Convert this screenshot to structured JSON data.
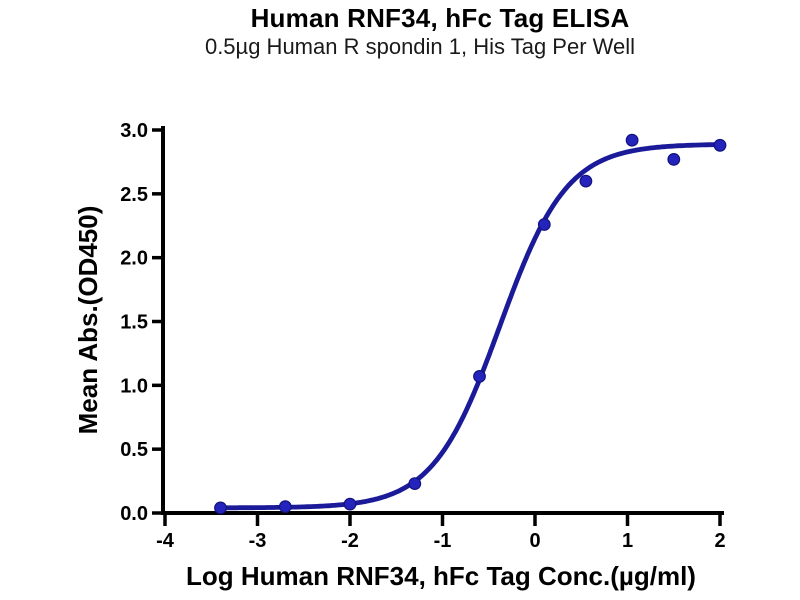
{
  "chart_data": {
    "type": "scatter",
    "title": "Human RNF34, hFc Tag ELISA",
    "subtitle": "0.5µg Human R spondin 1, His Tag Per Well",
    "xlabel": "Log Human RNF34, hFc Tag Conc.(µg/ml)",
    "ylabel": "Mean Abs.(OD450)",
    "xlim": [
      -4,
      2
    ],
    "ylim": [
      0,
      3
    ],
    "grid": false,
    "legend": "none",
    "x_ticks": [
      {
        "v": -4,
        "label": "-4"
      },
      {
        "v": -3,
        "label": "-3"
      },
      {
        "v": -2,
        "label": "-2"
      },
      {
        "v": -1,
        "label": "-1"
      },
      {
        "v": 0,
        "label": "0"
      },
      {
        "v": 1,
        "label": "1"
      },
      {
        "v": 2,
        "label": "2"
      }
    ],
    "y_ticks": [
      {
        "v": 0.0,
        "label": "0.0"
      },
      {
        "v": 0.5,
        "label": "0.5"
      },
      {
        "v": 1.0,
        "label": "1.0"
      },
      {
        "v": 1.5,
        "label": "1.5"
      },
      {
        "v": 2.0,
        "label": "2.0"
      },
      {
        "v": 2.5,
        "label": "2.5"
      },
      {
        "v": 3.0,
        "label": "3.0"
      }
    ],
    "points": [
      {
        "x": -3.4,
        "y": 0.04
      },
      {
        "x": -2.7,
        "y": 0.05
      },
      {
        "x": -2.0,
        "y": 0.07
      },
      {
        "x": -1.3,
        "y": 0.23
      },
      {
        "x": -0.6,
        "y": 1.07
      },
      {
        "x": 0.1,
        "y": 2.26
      },
      {
        "x": 0.55,
        "y": 2.6
      },
      {
        "x": 1.05,
        "y": 2.92
      },
      {
        "x": 1.5,
        "y": 2.77
      },
      {
        "x": 2.0,
        "y": 2.88
      }
    ],
    "curve_fit": {
      "model": "4PL",
      "bottom": 0.04,
      "top": 2.89,
      "log_ec50": -0.38,
      "hill_slope": 1.2,
      "x_start": -3.4,
      "x_end": 2.0
    },
    "colors": {
      "curve": "#1b1b99",
      "marker": "#2424bc",
      "marker_edge": "#12127e",
      "axis": "#000000",
      "text": "#000000",
      "background": "#ffffff"
    }
  }
}
